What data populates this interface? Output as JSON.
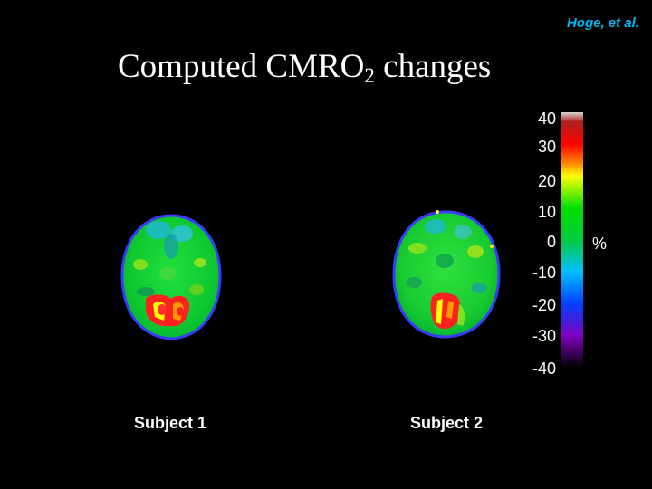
{
  "citation": "Hoge, et al.",
  "title": {
    "main": "Computed CMRO",
    "subscript": "2",
    "suffix": " changes"
  },
  "colorbar": {
    "ticks": [
      "40",
      "30",
      "20",
      "10",
      "0",
      "-10",
      "-20",
      "-30",
      "-40"
    ],
    "unit": "%",
    "stops": [
      {
        "value": 40,
        "color": "#d8d8d8"
      },
      {
        "value": 37,
        "color": "#b02020"
      },
      {
        "value": 30,
        "color": "#ff0000"
      },
      {
        "value": 24,
        "color": "#ff8800"
      },
      {
        "value": 20,
        "color": "#ffff00"
      },
      {
        "value": 10,
        "color": "#00e000"
      },
      {
        "value": 0,
        "color": "#00cc40"
      },
      {
        "value": -10,
        "color": "#00c0ff"
      },
      {
        "value": -20,
        "color": "#0040ff"
      },
      {
        "value": -30,
        "color": "#8000c0"
      },
      {
        "value": -40,
        "color": "#000000"
      }
    ]
  },
  "subjects": [
    {
      "label": "Subject 1"
    },
    {
      "label": "Subject 2"
    }
  ]
}
